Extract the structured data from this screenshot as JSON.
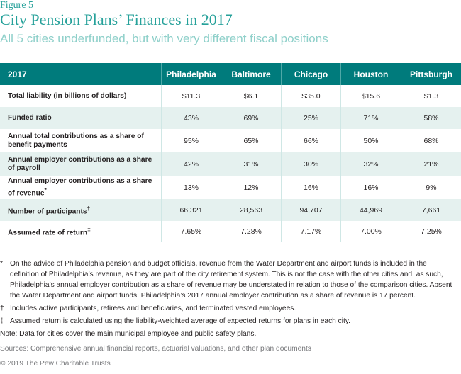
{
  "header": {
    "figure_label": "Figure 5",
    "title": "City Pension Plans’ Finances in 2017",
    "subtitle": "All 5 cities underfunded, but with very different fiscal positions"
  },
  "table": {
    "corner_label": "2017",
    "columns": [
      "Philadelphia",
      "Baltimore",
      "Chicago",
      "Houston",
      "Pittsburgh"
    ],
    "rows": [
      {
        "label": "Total liability (in billions of dollars)",
        "values": [
          "$11.3",
          "$6.1",
          "$35.0",
          "$15.6",
          "$1.3"
        ]
      },
      {
        "label": "Funded ratio",
        "values": [
          "43%",
          "69%",
          "25%",
          "71%",
          "58%"
        ]
      },
      {
        "label": "Annual total contributions as a share of benefit payments",
        "values": [
          "95%",
          "65%",
          "66%",
          "50%",
          "68%"
        ]
      },
      {
        "label": "Annual employer contributions as a share of payroll",
        "values": [
          "42%",
          "31%",
          "30%",
          "32%",
          "21%"
        ]
      },
      {
        "label": "Annual employer contributions as a share of revenue",
        "mark": "*",
        "values": [
          "13%",
          "12%",
          "16%",
          "16%",
          "9%"
        ]
      },
      {
        "label": "Number of participants",
        "mark": "†",
        "values": [
          "66,321",
          "28,563",
          "94,707",
          "44,969",
          "7,661"
        ]
      },
      {
        "label": "Assumed rate of return",
        "mark": "‡",
        "values": [
          "7.65%",
          "7.28%",
          "7.17%",
          "7.00%",
          "7.25%"
        ]
      }
    ]
  },
  "footnotes": [
    {
      "symbol": "*",
      "text": "On the advice of Philadelphia pension and budget officials, revenue from the Water Department and airport funds is included in the definition of Philadelphia’s revenue, as they are part of the city retirement system. This is not the case with the other cities and, as such, Philadelphia’s annual employer contribution as a share of revenue may be understated in relation to those of the comparison cities. Absent the Water Department and airport funds, Philadelphia’s 2017 annual employer contribution as a share of revenue is 17 percent."
    },
    {
      "symbol": "†",
      "text": "Includes active participants, retirees and beneficiaries, and terminated vested employees."
    },
    {
      "symbol": "‡",
      "text": "Assumed return is calculated using the liability-weighted average of expected returns for plans in each city."
    }
  ],
  "note": "Note: Data for cities cover the main municipal employee and public safety plans.",
  "sources": "Sources: Comprehensive annual financial reports, actuarial valuations, and other plan documents",
  "copyright": "© 2019 The Pew Charitable Trusts"
}
